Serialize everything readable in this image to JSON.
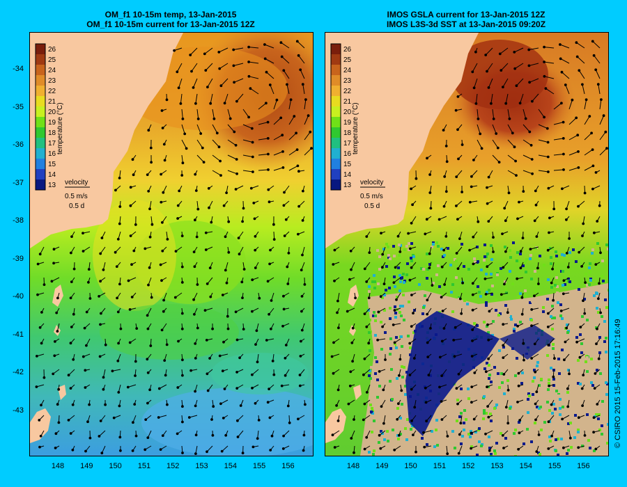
{
  "left_panel": {
    "title_line1": "OM_f1 10-15m temp, 13-Jan-2015",
    "title_line2": "OM_f1 10-15m current for 13-Jan-2015 12Z",
    "colorbar_label": "temperature (°C)",
    "velocity_label": "velocity",
    "velocity_scale": "0.5 m/s",
    "velocity_time": "0.5 d"
  },
  "right_panel": {
    "title_line1": "IMOS GSLA current for 13-Jan-2015 12Z",
    "title_line2": "IMOS L3S-3d SST at 13-Jan-2015 09:20Z",
    "colorbar_label": "temperature (°C)",
    "velocity_label": "velocity",
    "velocity_scale": "0.5 m/s",
    "velocity_time": "0.5 d"
  },
  "colorbar_ticks": [
    "26",
    "25",
    "24",
    "23",
    "22",
    "21",
    "20",
    "19",
    "18",
    "17",
    "16",
    "15",
    "14",
    "13"
  ],
  "colorbar_colors": [
    "#7a1e0c",
    "#a03a12",
    "#c8641c",
    "#e08c28",
    "#f0b030",
    "#e8dc20",
    "#c8f020",
    "#70e018",
    "#30c830",
    "#20c080",
    "#20b0d0",
    "#2080e0",
    "#2040c0",
    "#081880"
  ],
  "latitudes": [
    "-34",
    "-35",
    "-36",
    "-37",
    "-38",
    "-39",
    "-40",
    "-41",
    "-42",
    "-43"
  ],
  "longitudes": [
    "148",
    "149",
    "150",
    "151",
    "152",
    "153",
    "154",
    "155",
    "156"
  ],
  "credit": "© CSIRO 2015   15-Feb-2015 17:16:49"
}
